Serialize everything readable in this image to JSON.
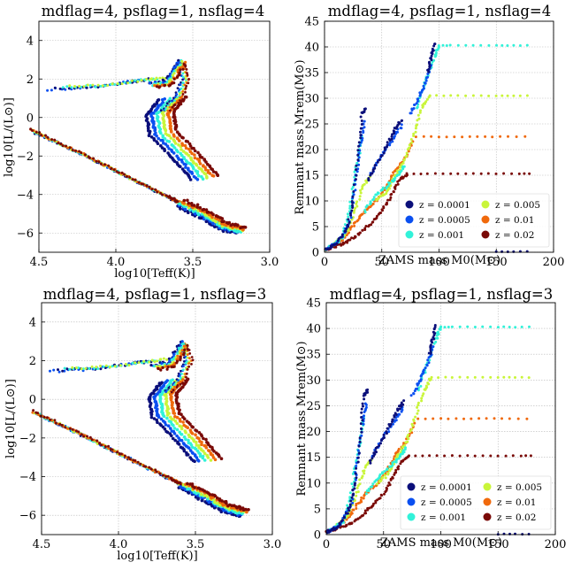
{
  "colors": {
    "z0001": "#0b0f7a",
    "z0005": "#0a4ff0",
    "z001": "#31f2d9",
    "z005": "#c9f53a",
    "z01": "#f0690c",
    "z02": "#7a0a07"
  },
  "chart_data": [
    {
      "type": "scatter",
      "title": "mdflag=4, psflag=1, nsflag=4",
      "xlabel": "log10[Teff(K)]",
      "ylabel": "log10[L/(L⊙)]",
      "xlim": [
        4.5,
        3.0
      ],
      "ylim": [
        -7,
        5
      ],
      "xticks": [
        "4.5",
        "4.0",
        "3.5",
        "3.0"
      ],
      "yticks": [
        "−6",
        "−4",
        "−2",
        "0",
        "2",
        "4"
      ],
      "grid": true
    },
    {
      "type": "scatter",
      "title": "mdflag=4, psflag=1, nsflag=4",
      "xlabel": "ZAMS mass M0(M⊙)",
      "ylabel": "Remnant mass Mrem(M⊙)",
      "xlim": [
        0,
        200
      ],
      "ylim": [
        0,
        45
      ],
      "xticks": [
        "0",
        "50",
        "100",
        "150",
        "200"
      ],
      "yticks": [
        "0",
        "5",
        "10",
        "15",
        "20",
        "25",
        "30",
        "35",
        "40",
        "45"
      ],
      "grid": true,
      "legend": [
        "z = 0.0001",
        "z = 0.0005",
        "z = 0.001",
        "z = 0.005",
        "z = 0.01",
        "z = 0.02"
      ],
      "legend_position": "lower-right"
    },
    {
      "type": "scatter",
      "title": "mdflag=4, psflag=1, nsflag=3",
      "xlabel": "log10[Teff(K)]",
      "ylabel": "log10[L/(L⊙)]",
      "xlim": [
        4.5,
        3.0
      ],
      "ylim": [
        -7,
        5
      ],
      "xticks": [
        "4.5",
        "4.0",
        "3.5",
        "3.0"
      ],
      "yticks": [
        "−6",
        "−4",
        "−2",
        "0",
        "2",
        "4"
      ],
      "grid": true
    },
    {
      "type": "scatter",
      "title": "mdflag=4, psflag=1, nsflag=3",
      "xlabel": "ZAMS mass M0(M⊙)",
      "ylabel": "Remnant mass Mrem(M⊙)",
      "xlim": [
        0,
        200
      ],
      "ylim": [
        0,
        45
      ],
      "xticks": [
        "0",
        "50",
        "100",
        "150",
        "200"
      ],
      "yticks": [
        "0",
        "5",
        "10",
        "15",
        "20",
        "25",
        "30",
        "35",
        "40",
        "45"
      ],
      "grid": true,
      "legend": [
        "z = 0.0001",
        "z = 0.0005",
        "z = 0.001",
        "z = 0.005",
        "z = 0.01",
        "z = 0.02"
      ],
      "legend_position": "lower-right"
    }
  ],
  "hr_curves": {
    "wd_sequence": [
      [
        4.52,
        -0.8
      ],
      [
        4.2,
        -2.0
      ],
      [
        3.9,
        -3.2
      ],
      [
        3.62,
        -4.3
      ],
      [
        3.55,
        -4.6
      ]
    ],
    "ms_branch": [
      [
        3.72,
        0.9
      ],
      [
        3.8,
        0.1
      ],
      [
        3.78,
        -0.9
      ],
      [
        3.62,
        -2.2
      ],
      [
        3.5,
        -3.3
      ]
    ],
    "hook": [
      [
        3.7,
        0.4
      ],
      [
        3.62,
        1.0
      ],
      [
        3.57,
        2.0
      ],
      [
        3.62,
        3.0
      ]
    ],
    "hb_tracks": [
      [
        4.45,
        1.45
      ],
      [
        4.2,
        1.55
      ],
      [
        3.95,
        1.8
      ],
      [
        3.82,
        1.95
      ]
    ],
    "cool_dwarfs": [
      [
        3.6,
        -4.6
      ],
      [
        3.45,
        -5.2
      ],
      [
        3.32,
        -5.8
      ],
      [
        3.2,
        -6.05
      ]
    ],
    "loops": [
      [
        3.78,
        1.8
      ],
      [
        3.68,
        1.9
      ],
      [
        3.63,
        2.5
      ],
      [
        3.58,
        3.1
      ]
    ]
  },
  "remnant_series": {
    "z0001_low": [
      [
        0.5,
        0.5
      ],
      [
        10,
        1.5
      ],
      [
        20,
        5
      ],
      [
        25,
        10
      ],
      [
        30,
        20
      ],
      [
        33,
        27
      ],
      [
        36,
        28
      ]
    ],
    "z0001_high": [
      [
        38,
        14
      ],
      [
        45,
        17
      ],
      [
        55,
        21
      ],
      [
        62,
        24
      ],
      [
        68,
        26
      ]
    ],
    "z0001_pisn": [
      [
        90,
        35
      ],
      [
        93,
        38
      ],
      [
        96,
        41
      ]
    ],
    "z0001_bh": [
      [
        150,
        0.1
      ],
      [
        165,
        0.1
      ],
      [
        183,
        0.1
      ]
    ],
    "z0005_low": [
      [
        0.5,
        0.5
      ],
      [
        12,
        2
      ],
      [
        22,
        6
      ],
      [
        28,
        15
      ],
      [
        32,
        22
      ],
      [
        35,
        26
      ]
    ],
    "z0005_high": [
      [
        40,
        15
      ],
      [
        50,
        19
      ],
      [
        60,
        22
      ],
      [
        68,
        25
      ]
    ],
    "z0005_pisn": [
      [
        75,
        27
      ],
      [
        82,
        30
      ],
      [
        88,
        33
      ],
      [
        94,
        37
      ]
    ],
    "z001_low": [
      [
        0.5,
        0.5
      ],
      [
        15,
        2.5
      ],
      [
        22,
        8
      ],
      [
        26,
        14
      ],
      [
        30,
        19
      ],
      [
        33,
        23
      ]
    ],
    "z001_high": [
      [
        35,
        8
      ],
      [
        45,
        11
      ],
      [
        55,
        13
      ],
      [
        64,
        15
      ],
      [
        70,
        17
      ]
    ],
    "z001_pisn": [
      [
        80,
        28
      ],
      [
        88,
        33
      ],
      [
        96,
        38
      ],
      [
        100,
        40.3
      ]
    ],
    "z001_flat": [
      [
        100,
        40.3
      ],
      [
        110,
        40.3
      ],
      [
        130,
        40.3
      ],
      [
        150,
        40.3
      ],
      [
        165,
        40.3
      ],
      [
        183,
        40.3
      ]
    ],
    "z005_rise": [
      [
        8,
        1.5
      ],
      [
        18,
        3.5
      ],
      [
        25,
        7
      ],
      [
        32,
        12
      ],
      [
        40,
        15
      ]
    ],
    "z005_mid": [
      [
        45,
        10
      ],
      [
        55,
        12
      ],
      [
        62,
        15
      ],
      [
        70,
        18
      ],
      [
        78,
        23
      ],
      [
        85,
        28
      ],
      [
        92,
        30.5
      ]
    ],
    "z005_flat": [
      [
        92,
        30.5
      ],
      [
        110,
        30.5
      ],
      [
        130,
        30.5
      ],
      [
        150,
        30.5
      ],
      [
        165,
        30.5
      ],
      [
        183,
        30.5
      ]
    ],
    "z01_rise": [
      [
        8,
        1.5
      ],
      [
        18,
        3
      ],
      [
        26,
        5.5
      ],
      [
        35,
        8
      ],
      [
        45,
        10
      ],
      [
        55,
        13
      ],
      [
        62,
        16
      ],
      [
        70,
        18
      ],
      [
        78,
        22
      ]
    ],
    "z01_flat": [
      [
        80,
        22.5
      ],
      [
        100,
        22.5
      ],
      [
        120,
        22.5
      ],
      [
        140,
        22.5
      ],
      [
        160,
        22.5
      ],
      [
        183,
        22.5
      ]
    ],
    "z02_rise": [
      [
        0.5,
        0.5
      ],
      [
        10,
        1.2
      ],
      [
        20,
        2
      ],
      [
        30,
        3.5
      ],
      [
        40,
        5.5
      ],
      [
        50,
        8
      ],
      [
        58,
        11
      ],
      [
        65,
        14
      ],
      [
        72,
        15.3
      ]
    ],
    "z02_flat": [
      [
        72,
        15.3
      ],
      [
        90,
        15.3
      ],
      [
        110,
        15.3
      ],
      [
        130,
        15.3
      ],
      [
        150,
        15.3
      ],
      [
        170,
        15.3
      ],
      [
        183,
        15.3
      ]
    ]
  }
}
